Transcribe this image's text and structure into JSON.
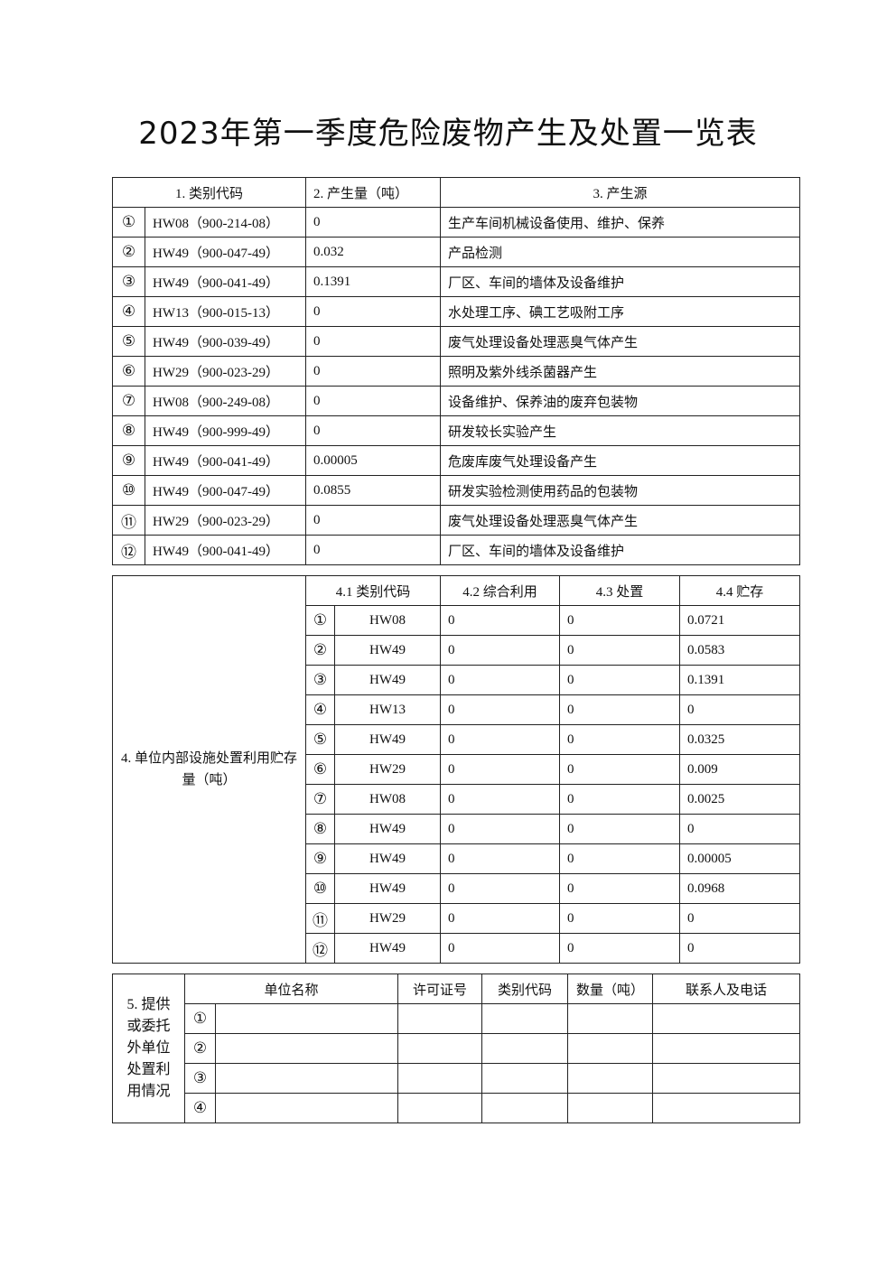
{
  "title": "2023年第一季度危险废物产生及处置一览表",
  "section1": {
    "headers": [
      "1. 类别代码",
      "2. 产生量（吨）",
      "3. 产生源"
    ],
    "rows": [
      {
        "no": "①",
        "code": "HW08（900-214-08）",
        "amount": "0",
        "source": "生产车间机械设备使用、维护、保养"
      },
      {
        "no": "②",
        "code": "HW49（900-047-49）",
        "amount": "0.032",
        "source": "产品检测"
      },
      {
        "no": "③",
        "code": "HW49（900-041-49）",
        "amount": "0.1391",
        "source": "厂区、车间的墙体及设备维护"
      },
      {
        "no": "④",
        "code": "HW13（900-015-13）",
        "amount": "0",
        "source": "水处理工序、碘工艺吸附工序"
      },
      {
        "no": "⑤",
        "code": "HW49（900-039-49）",
        "amount": "0",
        "source": "废气处理设备处理恶臭气体产生"
      },
      {
        "no": "⑥",
        "code": "HW29（900-023-29）",
        "amount": "0",
        "source": "照明及紫外线杀菌器产生"
      },
      {
        "no": "⑦",
        "code": "HW08（900-249-08）",
        "amount": "0",
        "source": "设备维护、保养油的废弃包装物"
      },
      {
        "no": "⑧",
        "code": "HW49（900-999-49）",
        "amount": "0",
        "source": "研发较长实验产生"
      },
      {
        "no": "⑨",
        "code": "HW49（900-041-49）",
        "amount": "0.00005",
        "source": "危废库废气处理设备产生"
      },
      {
        "no": "⑩",
        "code": "HW49（900-047-49）",
        "amount": "0.0855",
        "source": "研发实验检测使用药品的包装物"
      },
      {
        "no": "⑪",
        "code": "HW29（900-023-29）",
        "amount": "0",
        "source": "废气处理设备处理恶臭气体产生"
      },
      {
        "no": "⑫",
        "code": "HW49（900-041-49）",
        "amount": "0",
        "source": "厂区、车间的墙体及设备维护"
      }
    ]
  },
  "section4": {
    "label": "4. 单位内部设施处置利用贮存量（吨）",
    "headers": [
      "4.1 类别代码",
      "4.2 综合利用",
      "4.3 处置",
      "4.4 贮存"
    ],
    "rows": [
      {
        "no": "①",
        "code": "HW08",
        "use": "0",
        "disposal": "0",
        "storage": "0.0721"
      },
      {
        "no": "②",
        "code": "HW49",
        "use": "0",
        "disposal": "0",
        "storage": "0.0583"
      },
      {
        "no": "③",
        "code": "HW49",
        "use": "0",
        "disposal": "0",
        "storage": "0.1391"
      },
      {
        "no": "④",
        "code": "HW13",
        "use": "0",
        "disposal": "0",
        "storage": "0"
      },
      {
        "no": "⑤",
        "code": "HW49",
        "use": "0",
        "disposal": "0",
        "storage": "0.0325"
      },
      {
        "no": "⑥",
        "code": "HW29",
        "use": "0",
        "disposal": "0",
        "storage": "0.009"
      },
      {
        "no": "⑦",
        "code": "HW08",
        "use": "0",
        "disposal": "0",
        "storage": "0.0025"
      },
      {
        "no": "⑧",
        "code": "HW49",
        "use": "0",
        "disposal": "0",
        "storage": "0"
      },
      {
        "no": "⑨",
        "code": "HW49",
        "use": "0",
        "disposal": "0",
        "storage": "0.00005"
      },
      {
        "no": "⑩",
        "code": "HW49",
        "use": "0",
        "disposal": "0",
        "storage": "0.0968"
      },
      {
        "no": "⑪",
        "code": "HW29",
        "use": "0",
        "disposal": "0",
        "storage": "0"
      },
      {
        "no": "⑫",
        "code": "HW49",
        "use": "0",
        "disposal": "0",
        "storage": "0"
      }
    ]
  },
  "section5": {
    "label": "5. 提供或委托外单位处置利用情况",
    "headers": [
      "单位名称",
      "许可证号",
      "类别代码",
      "数量（吨）",
      "联系人及电话"
    ],
    "rows": [
      "①",
      "②",
      "③",
      "④"
    ]
  }
}
